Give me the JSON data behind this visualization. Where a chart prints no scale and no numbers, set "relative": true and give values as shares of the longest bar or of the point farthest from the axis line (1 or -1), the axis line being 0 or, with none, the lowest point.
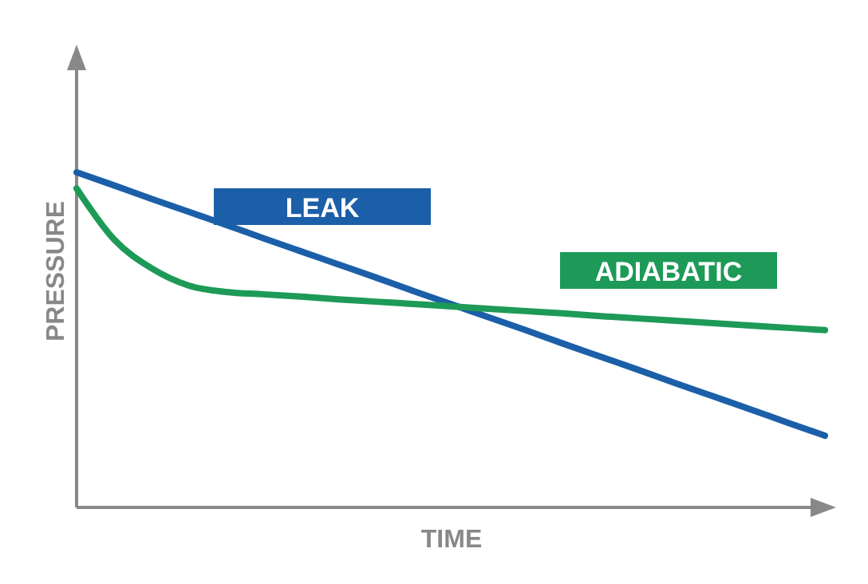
{
  "chart_data": {
    "type": "line",
    "xlabel": "TIME",
    "ylabel": "PRESSURE",
    "relative": true,
    "categories": [
      null,
      null,
      null,
      null,
      null,
      null,
      null,
      null,
      null,
      null,
      null,
      null,
      null,
      null,
      null,
      null,
      null,
      null,
      null,
      null,
      null
    ],
    "series": [
      {
        "name": "LEAK",
        "color": "#1b5fa9",
        "values": [
          1,
          0.961,
          0.921,
          0.882,
          0.843,
          0.803,
          0.764,
          0.725,
          0.686,
          0.646,
          0.607,
          0.568,
          0.529,
          0.489,
          0.45,
          0.411,
          0.371,
          0.332,
          0.293,
          0.253,
          0.214
        ]
      },
      {
        "name": "ADIABATIC",
        "color": "#1d9a57",
        "values": [
          0.952,
          0.8,
          0.714,
          0.662,
          0.643,
          0.636,
          0.629,
          0.621,
          0.614,
          0.607,
          0.6,
          0.593,
          0.586,
          0.579,
          0.571,
          0.564,
          0.557,
          0.55,
          0.543,
          0.536,
          0.529
        ]
      }
    ]
  }
}
